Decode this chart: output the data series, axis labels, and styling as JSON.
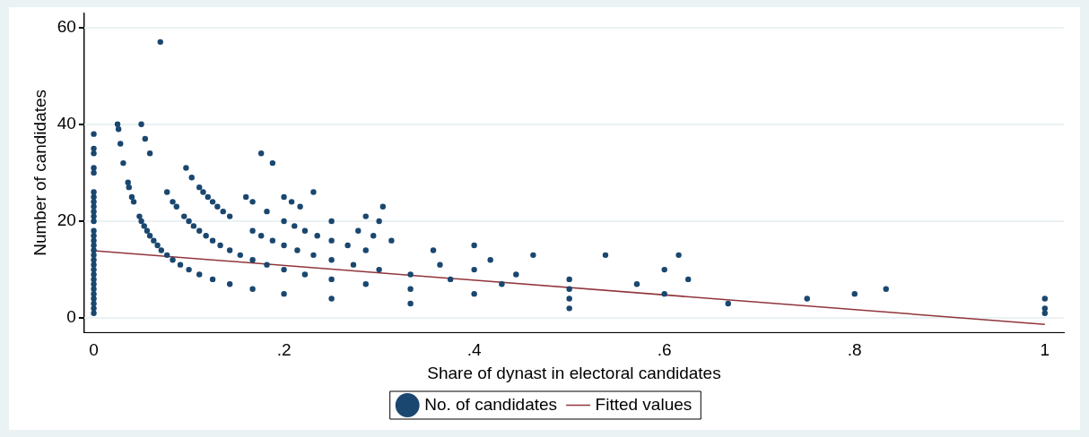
{
  "chart_data": {
    "type": "scatter",
    "xlabel": "Share of dynast in electoral candidates",
    "ylabel": "Number of candidates",
    "xlim": [
      -0.01,
      1.02
    ],
    "ylim": [
      -3,
      63
    ],
    "xticks": [
      0,
      {
        "value": 0.2,
        "label": ".2"
      },
      {
        "value": 0.4,
        "label": ".4"
      },
      {
        "value": 0.6,
        "label": ".6"
      },
      {
        "value": 0.8,
        "label": ".8"
      },
      1
    ],
    "yticks": [
      0,
      20,
      40,
      60
    ],
    "grid": "y",
    "legend": "bottom",
    "marker": "circle",
    "series": [
      {
        "name": "No. of candidates",
        "color": "#1a476f",
        "x": [
          0,
          0,
          0,
          0,
          0,
          0,
          0,
          0,
          0,
          0,
          0,
          0,
          0,
          0,
          0,
          0,
          0,
          0,
          0,
          0,
          0,
          0,
          0,
          0,
          0,
          0,
          0,
          0,
          0,
          0,
          0.025,
          0.026,
          0.028,
          0.031,
          0.036,
          0.037,
          0.04,
          0.042,
          0.048,
          0.05,
          0.053,
          0.056,
          0.059,
          0.063,
          0.067,
          0.071,
          0.077,
          0.083,
          0.091,
          0.1,
          0.111,
          0.125,
          0.143,
          0.167,
          0.2,
          0.25,
          0.333,
          0.5,
          1,
          0.05,
          0.054,
          0.059,
          0.077,
          0.083,
          0.087,
          0.095,
          0.1,
          0.105,
          0.111,
          0.118,
          0.125,
          0.133,
          0.143,
          0.154,
          0.167,
          0.182,
          0.2,
          0.222,
          0.25,
          0.286,
          0.333,
          0.4,
          0.5,
          0.667,
          1,
          0.097,
          0.103,
          0.111,
          0.115,
          0.12,
          0.125,
          0.13,
          0.136,
          0.143,
          0.167,
          0.176,
          0.188,
          0.2,
          0.214,
          0.231,
          0.25,
          0.273,
          0.3,
          0.333,
          0.375,
          0.429,
          0.5,
          0.6,
          0.75,
          0.07,
          0.16,
          0.167,
          0.182,
          0.2,
          0.211,
          0.222,
          0.235,
          0.25,
          0.267,
          0.286,
          0.364,
          0.4,
          0.444,
          0.5,
          0.571,
          0.8,
          1,
          0.2,
          0.208,
          0.217,
          0.25,
          0.278,
          0.294,
          0.313,
          0.357,
          0.417,
          0.625,
          0.833,
          0.176,
          0.188,
          0.231,
          0.286,
          0.3,
          0.4,
          0.462,
          0.6,
          0.304,
          0.538,
          0.615
        ],
        "values": [
          1,
          2,
          3,
          4,
          5,
          6,
          7,
          8,
          9,
          10,
          11,
          12,
          13,
          14,
          15,
          16,
          17,
          18,
          20,
          21,
          22,
          23,
          24,
          25,
          26,
          30,
          31,
          34,
          35,
          38,
          40,
          39,
          36,
          32,
          28,
          27,
          25,
          24,
          21,
          20,
          19,
          18,
          17,
          16,
          15,
          14,
          13,
          12,
          11,
          10,
          9,
          8,
          7,
          6,
          5,
          4,
          3,
          2,
          1,
          40,
          37,
          34,
          26,
          24,
          23,
          21,
          20,
          19,
          18,
          17,
          16,
          15,
          14,
          13,
          12,
          11,
          10,
          9,
          8,
          7,
          6,
          5,
          4,
          3,
          2,
          31,
          29,
          27,
          26,
          25,
          24,
          23,
          22,
          21,
          18,
          17,
          16,
          15,
          14,
          13,
          12,
          11,
          10,
          9,
          8,
          7,
          6,
          5,
          4,
          57,
          25,
          24,
          22,
          20,
          19,
          18,
          17,
          16,
          15,
          14,
          11,
          10,
          9,
          8,
          7,
          5,
          4,
          25,
          24,
          23,
          20,
          18,
          17,
          16,
          14,
          12,
          8,
          6,
          34,
          32,
          26,
          21,
          20,
          15,
          13,
          10,
          23,
          13,
          13
        ]
      },
      {
        "name": "Fitted values",
        "type": "line",
        "color": "#90353b",
        "marker": "none",
        "x": [
          0,
          1
        ],
        "values": [
          13.9,
          -1.3
        ]
      }
    ]
  }
}
